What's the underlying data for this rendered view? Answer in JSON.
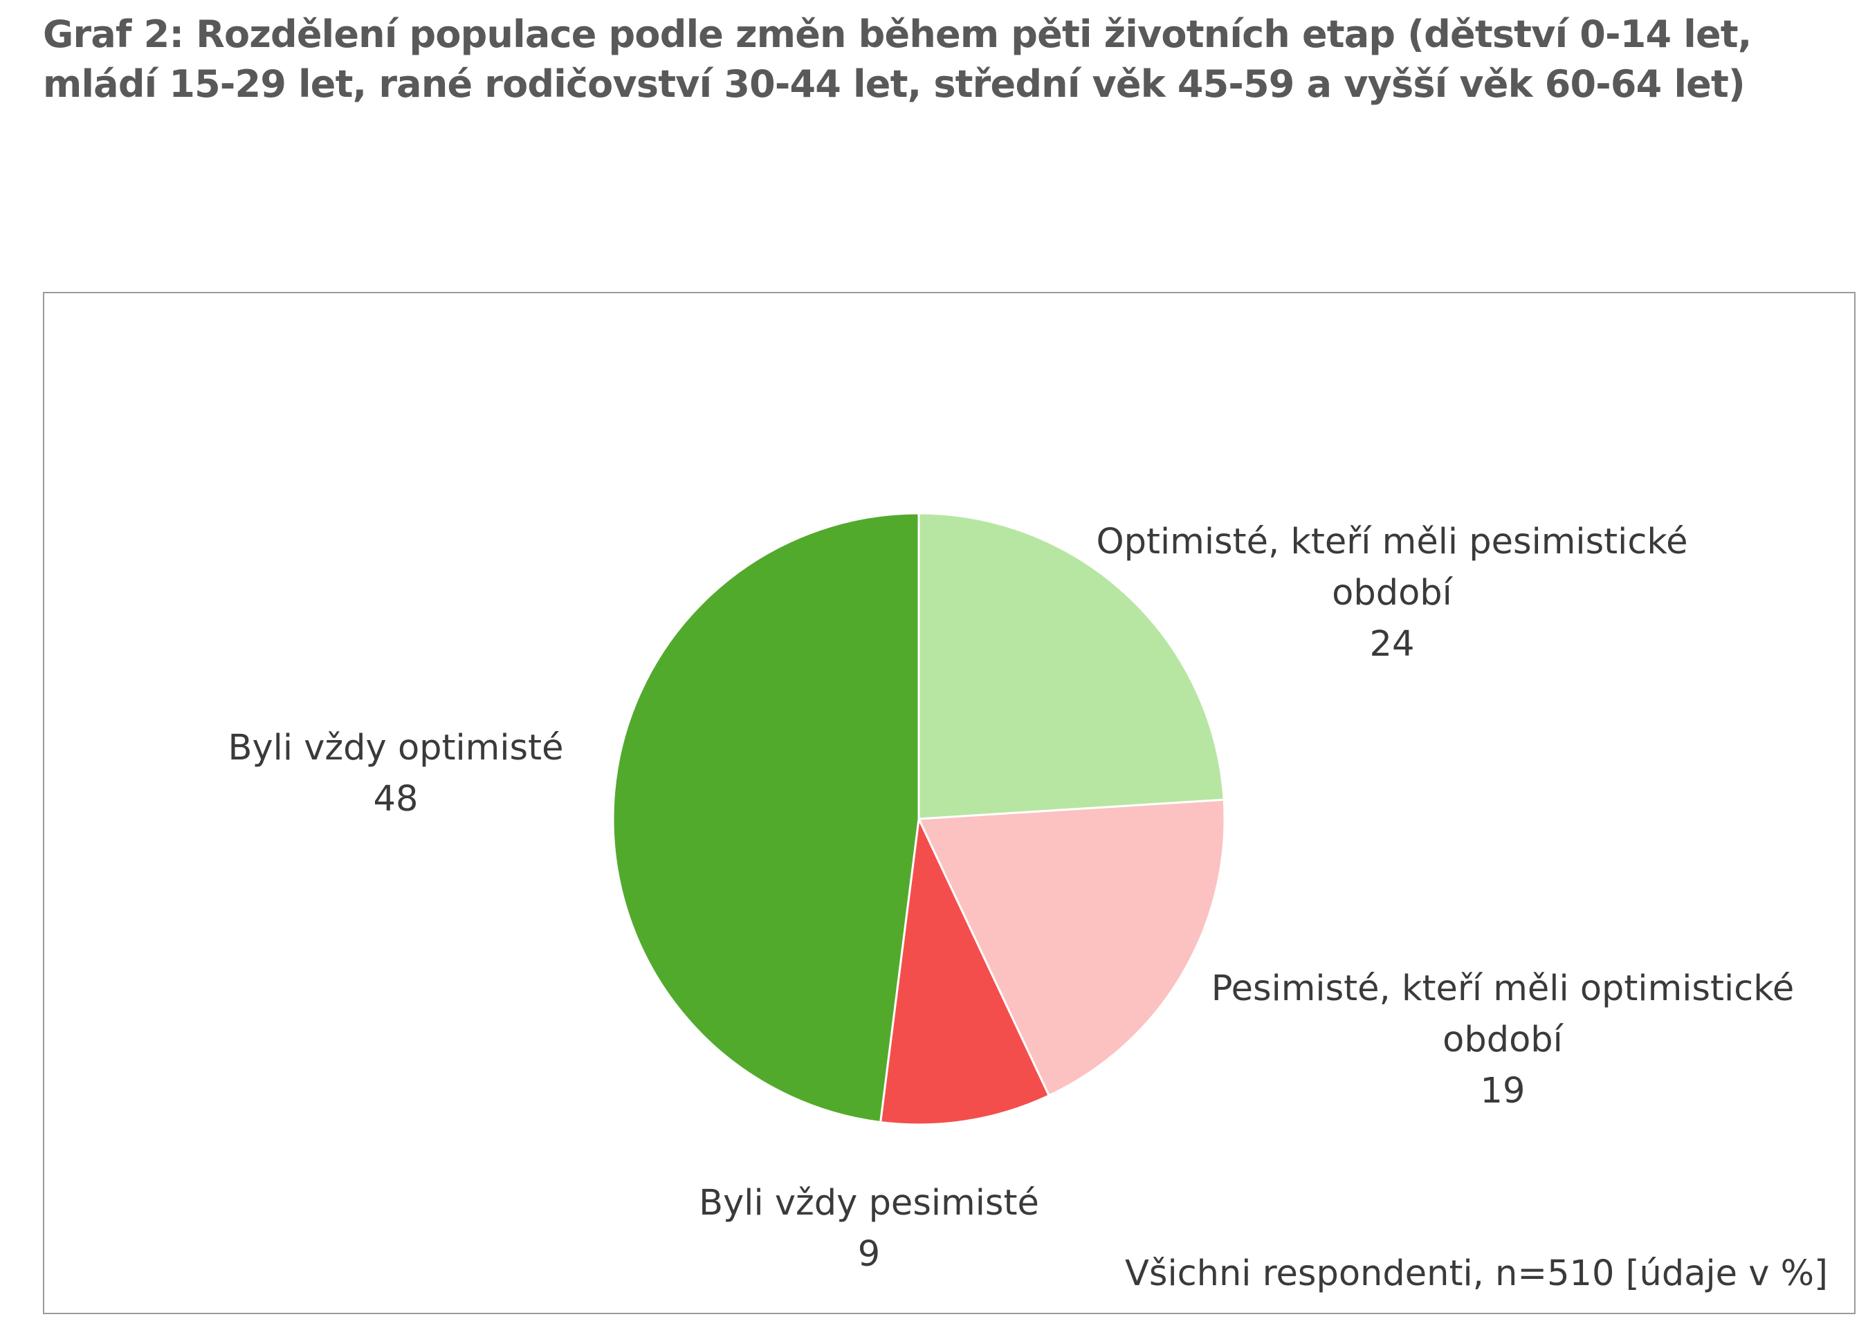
{
  "title": "Graf 2: Rozdělení populace podle změn během pěti životních etap (dětství 0-14 let, mládí 15-29 let, rané rodičovství 30-44 let, střední věk 45-59 a vyšší věk 60-64 let)",
  "footnote": "Všichni respondenti, n=510 [údaje v %]",
  "chart_data": {
    "type": "pie",
    "title": "Graf 2: Rozdělení populace podle změn během pěti životních etap (dětství 0-14 let, mládí 15-29 let, rané rodičovství 30-44 let, střední věk 45-59 a vyšší věk 60-64 let)",
    "unit": "%",
    "slices": [
      {
        "label": "Optimisté, kteří měli pesimistické období",
        "label_lines": [
          "Optimisté, kteří měli pesimistické",
          "období"
        ],
        "value": 24,
        "color": "#b7e6a2"
      },
      {
        "label": "Pesimisté, kteří měli optimistické období",
        "label_lines": [
          "Pesimisté, kteří měli optimistické",
          "období"
        ],
        "value": 19,
        "color": "#fbc2c1"
      },
      {
        "label": "Byli vždy pesimisté",
        "label_lines": [
          "Byli vždy pesimisté"
        ],
        "value": 9,
        "color": "#f44e4c"
      },
      {
        "label": "Byli vždy optimisté",
        "label_lines": [
          "Byli vždy optimisté"
        ],
        "value": 48,
        "color": "#52aa2d"
      }
    ]
  }
}
